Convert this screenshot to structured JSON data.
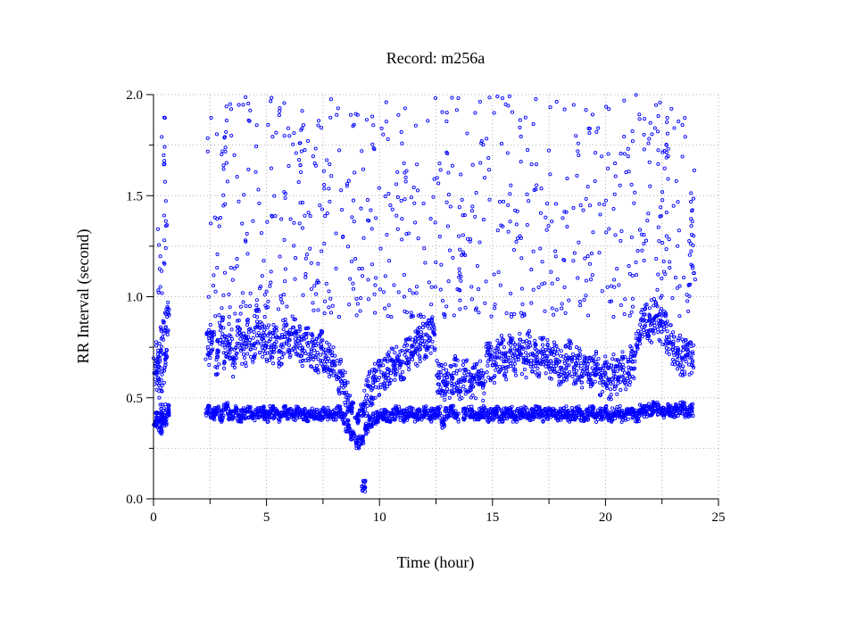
{
  "chart_data": {
    "type": "scatter",
    "title": "Record:  m256a",
    "xlabel": "Time (hour)",
    "ylabel": "RR Interval (second)",
    "xlim": [
      0,
      25
    ],
    "ylim": [
      0.0,
      2.0
    ],
    "x_ticks": [
      0,
      5,
      10,
      15,
      20,
      25
    ],
    "x_tick_labels": [
      "0",
      "5",
      "10",
      "15",
      "20",
      "25"
    ],
    "y_ticks": [
      0.0,
      0.5,
      1.0,
      1.5,
      2.0
    ],
    "y_tick_labels": [
      "0.0",
      "0.5",
      "1.0",
      "1.5",
      "2.0"
    ],
    "grid": true,
    "marker_color": "#0000ff",
    "data_gap_hours": [
      0.7,
      2.3
    ],
    "series": [
      {
        "values_description": "sampled RR interval points (hour, second)",
        "points": [
          [
            0.1,
            0.62
          ],
          [
            0.1,
            0.38
          ],
          [
            0.2,
            0.7
          ],
          [
            0.2,
            0.4
          ],
          [
            0.3,
            0.55
          ],
          [
            0.3,
            0.35
          ],
          [
            0.4,
            0.8
          ],
          [
            0.4,
            0.42
          ],
          [
            0.5,
            0.65
          ],
          [
            0.5,
            0.39
          ],
          [
            0.6,
            0.9
          ],
          [
            0.6,
            0.44
          ],
          [
            0.55,
            1.35
          ],
          [
            0.45,
            1.7
          ],
          [
            0.3,
            1.2
          ],
          [
            2.4,
            0.75
          ],
          [
            2.4,
            0.44
          ],
          [
            2.6,
            0.8
          ],
          [
            2.6,
            0.42
          ],
          [
            2.8,
            0.7
          ],
          [
            2.8,
            0.43
          ],
          [
            3.0,
            0.85
          ],
          [
            3.0,
            0.41
          ],
          [
            3.1,
            1.65
          ],
          [
            3.2,
            0.72
          ],
          [
            3.2,
            0.45
          ],
          [
            3.4,
            0.78
          ],
          [
            3.4,
            0.42
          ],
          [
            3.6,
            0.69
          ],
          [
            3.6,
            0.43
          ],
          [
            3.8,
            0.82
          ],
          [
            3.8,
            0.41
          ],
          [
            4.0,
            0.74
          ],
          [
            4.0,
            0.42
          ],
          [
            4.2,
            0.8
          ],
          [
            4.2,
            0.43
          ],
          [
            4.4,
            0.76
          ],
          [
            4.4,
            0.41
          ],
          [
            4.6,
            0.86
          ],
          [
            4.6,
            0.42
          ],
          [
            4.8,
            0.79
          ],
          [
            4.8,
            0.43
          ],
          [
            5.0,
            0.77
          ],
          [
            5.0,
            0.41
          ],
          [
            5.2,
            0.74
          ],
          [
            5.2,
            0.43
          ],
          [
            5.4,
            0.81
          ],
          [
            5.4,
            0.42
          ],
          [
            5.6,
            0.73
          ],
          [
            5.6,
            0.41
          ],
          [
            5.8,
            0.8
          ],
          [
            5.8,
            0.43
          ],
          [
            6.0,
            0.76
          ],
          [
            6.0,
            0.42
          ],
          [
            6.2,
            0.82
          ],
          [
            6.2,
            0.41
          ],
          [
            6.4,
            0.78
          ],
          [
            6.4,
            0.43
          ],
          [
            6.5,
            1.65
          ],
          [
            6.6,
            0.74
          ],
          [
            6.6,
            0.42
          ],
          [
            6.8,
            0.77
          ],
          [
            6.8,
            0.41
          ],
          [
            7.0,
            0.73
          ],
          [
            7.0,
            0.43
          ],
          [
            7.2,
            0.71
          ],
          [
            7.2,
            0.42
          ],
          [
            7.4,
            0.75
          ],
          [
            7.4,
            0.41
          ],
          [
            7.6,
            0.7
          ],
          [
            7.6,
            0.43
          ],
          [
            7.8,
            0.68
          ],
          [
            7.8,
            0.42
          ],
          [
            8.0,
            0.66
          ],
          [
            8.0,
            0.41
          ],
          [
            8.2,
            0.6
          ],
          [
            8.2,
            0.43
          ],
          [
            8.4,
            0.55
          ],
          [
            8.4,
            0.4
          ],
          [
            8.6,
            0.5
          ],
          [
            8.6,
            0.36
          ],
          [
            8.8,
            0.45
          ],
          [
            8.8,
            0.32
          ],
          [
            9.0,
            0.4
          ],
          [
            9.0,
            0.28
          ],
          [
            9.2,
            0.44
          ],
          [
            9.2,
            0.3
          ],
          [
            9.4,
            0.5
          ],
          [
            9.4,
            0.35
          ],
          [
            9.6,
            0.55
          ],
          [
            9.6,
            0.38
          ],
          [
            9.8,
            0.58
          ],
          [
            9.8,
            0.4
          ],
          [
            10.0,
            0.6
          ],
          [
            10.0,
            0.41
          ],
          [
            10.2,
            0.62
          ],
          [
            10.2,
            0.42
          ],
          [
            10.4,
            0.64
          ],
          [
            10.4,
            0.41
          ],
          [
            10.6,
            0.66
          ],
          [
            10.6,
            0.42
          ],
          [
            10.8,
            0.67
          ],
          [
            10.8,
            0.43
          ],
          [
            11.0,
            0.68
          ],
          [
            11.0,
            0.41
          ],
          [
            11.2,
            0.7
          ],
          [
            11.2,
            0.42
          ],
          [
            11.4,
            0.72
          ],
          [
            11.4,
            0.43
          ],
          [
            11.6,
            0.74
          ],
          [
            11.6,
            0.41
          ],
          [
            11.8,
            0.76
          ],
          [
            11.8,
            0.42
          ],
          [
            12.0,
            0.78
          ],
          [
            12.0,
            0.43
          ],
          [
            12.2,
            0.8
          ],
          [
            12.2,
            0.41
          ],
          [
            12.4,
            0.82
          ],
          [
            12.4,
            0.42
          ],
          [
            12.6,
            0.6
          ],
          [
            12.6,
            0.43
          ],
          [
            12.8,
            0.58
          ],
          [
            12.8,
            0.38
          ],
          [
            13.0,
            0.6
          ],
          [
            13.0,
            0.42
          ],
          [
            13.2,
            0.57
          ],
          [
            13.2,
            0.43
          ],
          [
            13.4,
            0.62
          ],
          [
            13.4,
            0.41
          ],
          [
            13.6,
            1.1
          ],
          [
            13.6,
            0.58
          ],
          [
            13.8,
            0.6
          ],
          [
            13.8,
            0.42
          ],
          [
            14.0,
            0.55
          ],
          [
            14.0,
            0.43
          ],
          [
            14.2,
            0.58
          ],
          [
            14.2,
            0.41
          ],
          [
            14.4,
            0.6
          ],
          [
            14.4,
            0.42
          ],
          [
            14.6,
            0.56
          ],
          [
            14.6,
            0.43
          ],
          [
            14.8,
            0.68
          ],
          [
            14.8,
            0.41
          ],
          [
            15.0,
            0.66
          ],
          [
            15.0,
            0.42
          ],
          [
            15.2,
            0.7
          ],
          [
            15.2,
            0.43
          ],
          [
            15.4,
            0.72
          ],
          [
            15.4,
            0.41
          ],
          [
            15.6,
            0.68
          ],
          [
            15.6,
            0.42
          ],
          [
            15.8,
            0.74
          ],
          [
            15.8,
            0.43
          ],
          [
            16.0,
            0.7
          ],
          [
            16.0,
            0.41
          ],
          [
            16.2,
            0.73
          ],
          [
            16.2,
            0.42
          ],
          [
            16.4,
            0.69
          ],
          [
            16.4,
            0.43
          ],
          [
            16.6,
            0.75
          ],
          [
            16.6,
            0.41
          ],
          [
            16.8,
            0.71
          ],
          [
            16.8,
            0.42
          ],
          [
            17.0,
            0.68
          ],
          [
            17.0,
            0.43
          ],
          [
            17.2,
            0.72
          ],
          [
            17.2,
            0.41
          ],
          [
            17.4,
            0.7
          ],
          [
            17.4,
            0.42
          ],
          [
            17.6,
            0.66
          ],
          [
            17.6,
            0.43
          ],
          [
            17.8,
            0.69
          ],
          [
            17.8,
            0.41
          ],
          [
            18.0,
            0.65
          ],
          [
            18.0,
            0.42
          ],
          [
            18.2,
            0.67
          ],
          [
            18.2,
            0.43
          ],
          [
            18.4,
            0.7
          ],
          [
            18.4,
            0.41
          ],
          [
            18.6,
            0.64
          ],
          [
            18.6,
            0.42
          ],
          [
            18.8,
            0.66
          ],
          [
            18.8,
            0.43
          ],
          [
            19.0,
            0.63
          ],
          [
            19.0,
            0.41
          ],
          [
            19.2,
            0.65
          ],
          [
            19.2,
            0.42
          ],
          [
            19.4,
            0.62
          ],
          [
            19.4,
            0.43
          ],
          [
            19.6,
            0.64
          ],
          [
            19.6,
            0.41
          ],
          [
            19.8,
            0.6
          ],
          [
            19.8,
            0.42
          ],
          [
            20.0,
            0.62
          ],
          [
            20.0,
            0.43
          ],
          [
            20.2,
            0.58
          ],
          [
            20.2,
            0.41
          ],
          [
            20.4,
            0.63
          ],
          [
            20.4,
            0.42
          ],
          [
            20.6,
            0.6
          ],
          [
            20.6,
            0.43
          ],
          [
            20.8,
            0.65
          ],
          [
            20.8,
            0.41
          ],
          [
            21.0,
            0.62
          ],
          [
            21.0,
            0.42
          ],
          [
            21.2,
            0.68
          ],
          [
            21.2,
            0.43
          ],
          [
            21.4,
            0.75
          ],
          [
            21.4,
            0.41
          ],
          [
            21.6,
            0.85
          ],
          [
            21.6,
            0.44
          ],
          [
            21.8,
            0.88
          ],
          [
            21.8,
            0.43
          ],
          [
            22.0,
            0.86
          ],
          [
            22.0,
            0.44
          ],
          [
            22.2,
            0.9
          ],
          [
            22.2,
            0.45
          ],
          [
            22.4,
            0.87
          ],
          [
            22.4,
            0.44
          ],
          [
            22.6,
            0.85
          ],
          [
            22.6,
            0.43
          ],
          [
            22.7,
            1.75
          ],
          [
            22.8,
            0.8
          ],
          [
            22.8,
            0.44
          ],
          [
            23.0,
            0.75
          ],
          [
            23.0,
            0.43
          ],
          [
            23.2,
            0.72
          ],
          [
            23.2,
            0.44
          ],
          [
            23.4,
            0.7
          ],
          [
            23.4,
            0.45
          ],
          [
            23.6,
            0.71
          ],
          [
            23.6,
            0.43
          ],
          [
            23.8,
            0.7
          ],
          [
            23.8,
            0.44
          ],
          [
            23.8,
            1.35
          ],
          [
            9.3,
            0.06
          ]
        ]
      }
    ]
  }
}
